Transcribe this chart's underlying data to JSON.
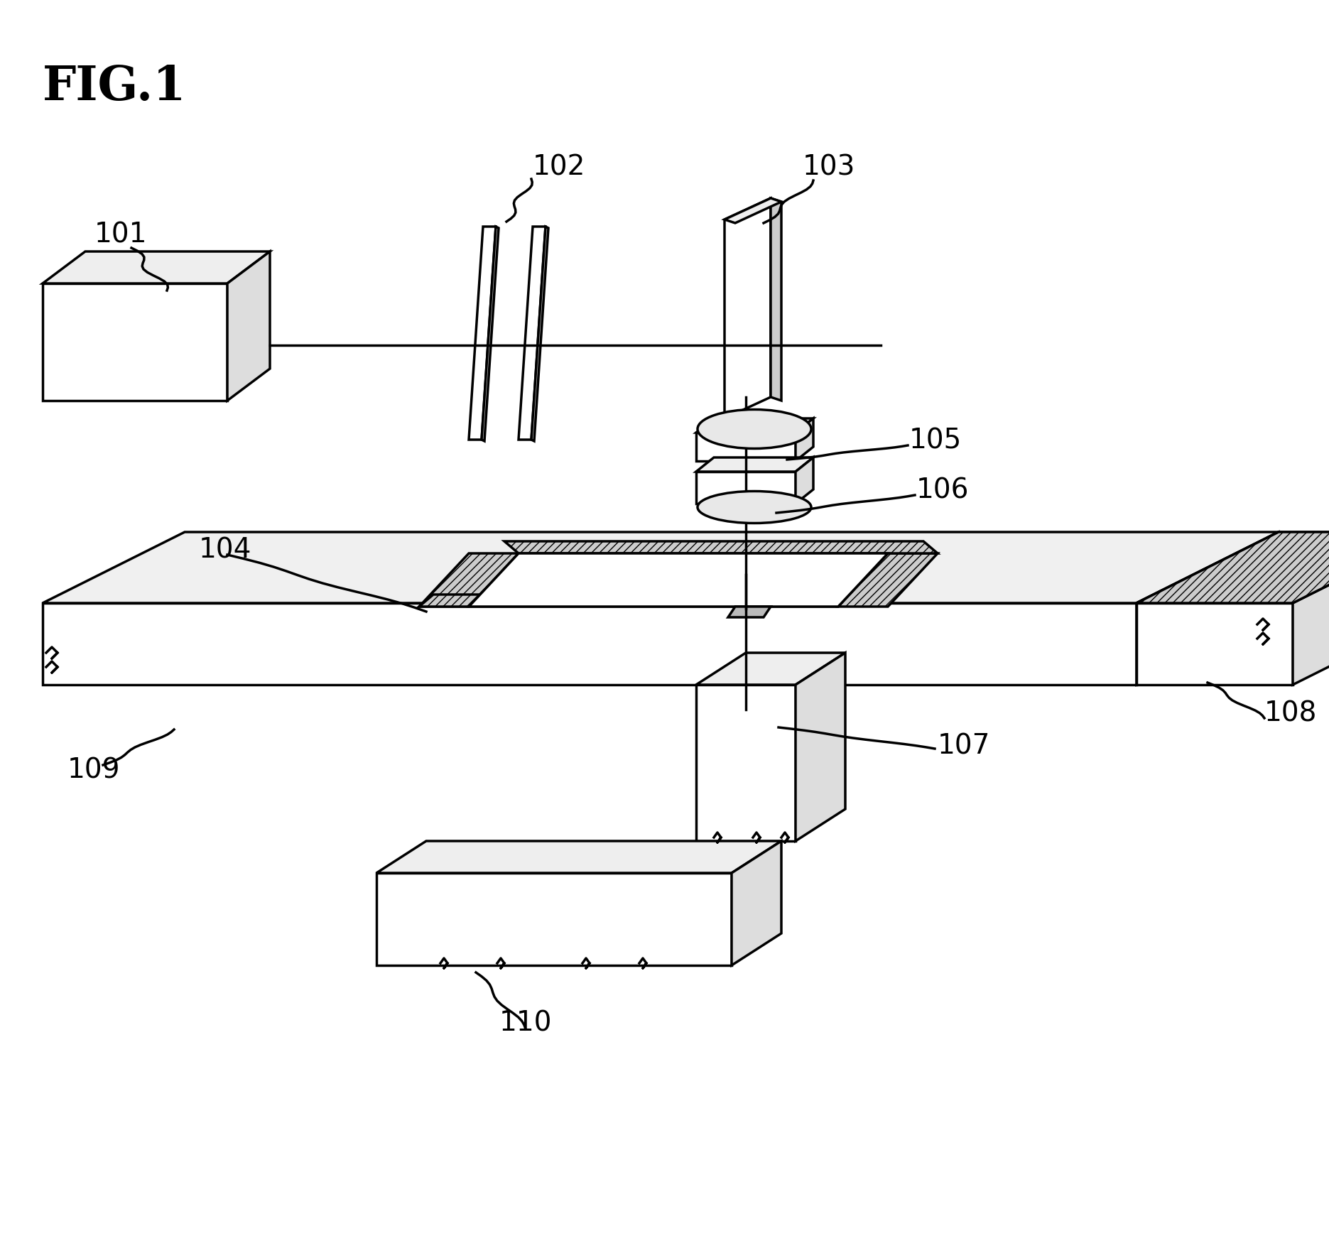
{
  "title": "FIG.1",
  "bg": "#ffffff",
  "lc": "#000000",
  "lw": 2.5,
  "lw_thin": 1.5,
  "fs_label": 28,
  "fs_title": 48
}
